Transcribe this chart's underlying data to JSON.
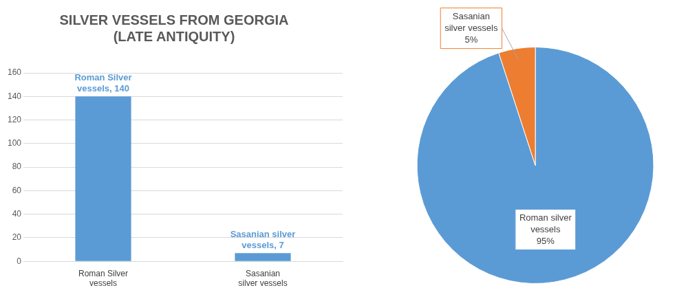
{
  "chart_data": [
    {
      "type": "bar",
      "title": "SILVER VESSELS FROM GEORGIA (LATE ANTIQUITY)",
      "categories": [
        "Roman Silver vessels",
        "Sasanian silver vessels"
      ],
      "values": [
        140,
        7
      ],
      "color": "#5b9bd5",
      "value_labels": [
        "Roman Silver vessels, 140",
        "Sasanian silver vessels, 7"
      ],
      "ylim": [
        0,
        160
      ],
      "yticks": [
        0,
        20,
        40,
        60,
        80,
        100,
        120,
        140,
        160
      ],
      "grid": "y",
      "legend": false
    },
    {
      "type": "pie",
      "categories": [
        "Roman silver vessels",
        "Sasanian silver vessels"
      ],
      "values": [
        95,
        5
      ],
      "colors": [
        "#5b9bd5",
        "#ed7d31"
      ],
      "value_labels": [
        "95%",
        "5%"
      ],
      "legend": false
    }
  ]
}
